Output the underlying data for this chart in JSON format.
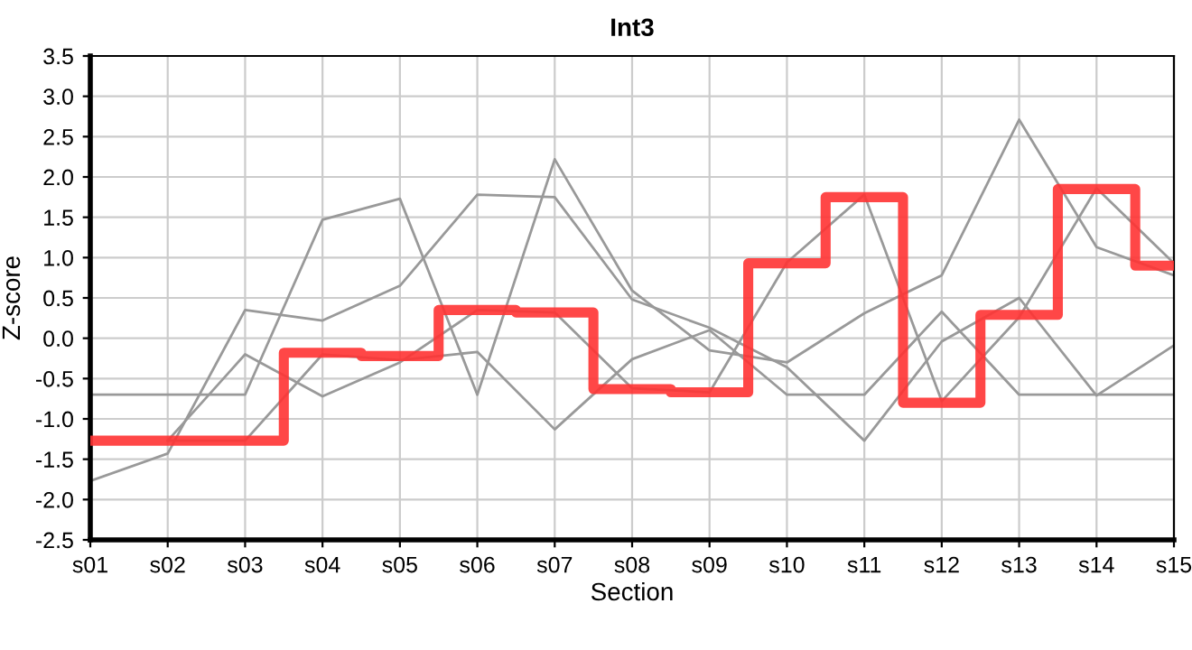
{
  "chart_data": {
    "type": "line",
    "title": "Int3",
    "xlabel": "Section",
    "ylabel": "Z-score",
    "categories": [
      "s01",
      "s02",
      "s03",
      "s04",
      "s05",
      "s06",
      "s07",
      "s08",
      "s09",
      "s10",
      "s11",
      "s12",
      "s13",
      "s14",
      "s15"
    ],
    "series": [
      {
        "color": "#999999",
        "values": [
          -0.7,
          -0.7,
          -0.7,
          1.47,
          1.73,
          -0.7,
          2.22,
          0.59,
          -0.15,
          -0.3,
          0.31,
          0.78,
          2.71,
          1.13,
          0.78
        ]
      },
      {
        "color": "#999999",
        "values": [
          -1.77,
          -1.43,
          0.35,
          0.22,
          0.65,
          1.78,
          1.75,
          0.48,
          0.13,
          -0.36,
          -1.27,
          -0.04,
          0.5,
          -0.71,
          -0.09
        ]
      },
      {
        "color": "#999999",
        "values": [
          null,
          -1.27,
          -0.2,
          -0.72,
          -0.3,
          0.35,
          0.32,
          -0.62,
          -0.67,
          0.94,
          1.78,
          -0.78,
          0.26,
          1.86,
          0.93
        ]
      },
      {
        "color": "#999999",
        "values": [
          null,
          -1.27,
          -1.27,
          -0.2,
          -0.27,
          -0.17,
          -1.13,
          -0.26,
          0.1,
          -0.7,
          -0.7,
          0.33,
          -0.7,
          -0.7,
          -0.7
        ]
      },
      {
        "type": "step",
        "color": "#ff3333",
        "values": [
          -1.27,
          -1.27,
          -1.27,
          -0.18,
          -0.22,
          0.35,
          0.32,
          -0.63,
          -0.67,
          0.93,
          1.75,
          -0.8,
          0.29,
          1.85,
          0.9
        ]
      }
    ],
    "ylim": [
      -2.5,
      3.5
    ],
    "yticks": [
      {
        "value": -2.5,
        "label": "-2.5"
      },
      {
        "value": -2.0,
        "label": "-2.0"
      },
      {
        "value": -1.5,
        "label": "-1.5"
      },
      {
        "value": -1.0,
        "label": "-1.0"
      },
      {
        "value": -0.5,
        "label": "-0.5"
      },
      {
        "value": 0.0,
        "label": "0.0"
      },
      {
        "value": 0.5,
        "label": "0.5"
      },
      {
        "value": 1.0,
        "label": "1.0"
      },
      {
        "value": 1.5,
        "label": "1.5"
      },
      {
        "value": 2.0,
        "label": "2.0"
      },
      {
        "value": 2.5,
        "label": "2.5"
      },
      {
        "value": 3.0,
        "label": "3.0"
      },
      {
        "value": 3.5,
        "label": "3.5"
      }
    ],
    "grid": true
  }
}
